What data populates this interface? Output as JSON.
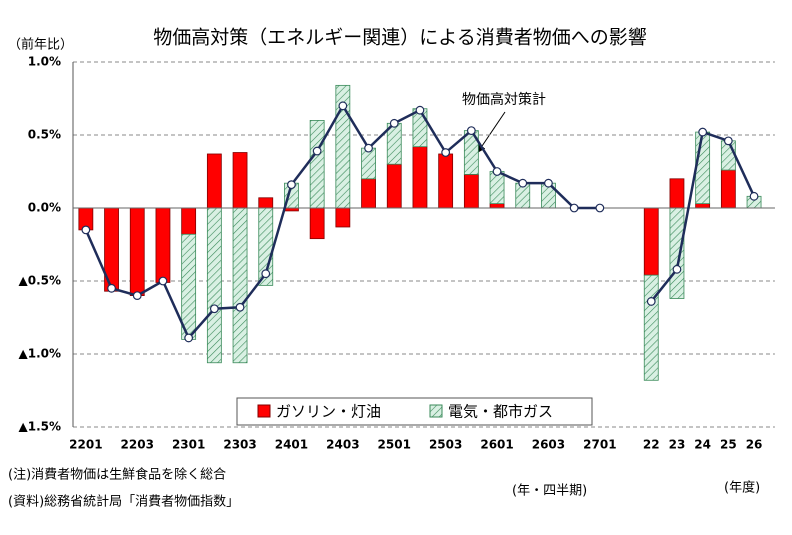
{
  "chart_data": {
    "type": "bar",
    "title": "物価高対策（エネルギー関連）による消費者物価への影響",
    "y_label": "（前年比）",
    "x_label": "(年・四半期)",
    "x_label_2": "(年度)",
    "notes": [
      "(注)消費者物価は生鮮食品を除く総合",
      "(資料)総務省統計局「消費者物価指数」"
    ],
    "categories": [
      "2201",
      null,
      "2203",
      null,
      "2301",
      null,
      "2303",
      null,
      "2401",
      null,
      "2403",
      null,
      "2501",
      null,
      "2503",
      null,
      "2601",
      null,
      "2603",
      null,
      "2701",
      null,
      "22",
      "23",
      "24",
      "25",
      "26"
    ],
    "series": [
      {
        "name": "ガソリン・灯油",
        "type": "bar",
        "color": "#ff0000",
        "values": [
          -0.15,
          -0.57,
          -0.6,
          -0.51,
          -0.18,
          0.37,
          0.38,
          0.07,
          -0.02,
          -0.21,
          -0.13,
          0.2,
          0.3,
          0.42,
          0.37,
          0.23,
          0.03,
          0,
          0,
          0,
          0,
          null,
          -0.46,
          0.2,
          0.03,
          0.26,
          0
        ]
      },
      {
        "name": "電気・都市ガス",
        "type": "bar",
        "color": "#d9f0e3",
        "hatch_color": "#3a8a5a",
        "values": [
          0,
          0,
          0,
          0,
          -0.72,
          -1.06,
          -1.06,
          -0.53,
          0.17,
          0.6,
          0.84,
          0.21,
          0.28,
          0.26,
          0,
          0.3,
          0.22,
          0.17,
          0.17,
          0,
          0,
          null,
          -0.72,
          -0.62,
          0.49,
          0.2,
          0.08
        ]
      },
      {
        "name": "物価高対策計",
        "type": "line",
        "color": "#1f2d5a",
        "values": [
          -0.15,
          -0.55,
          -0.6,
          -0.5,
          -0.89,
          -0.69,
          -0.68,
          -0.45,
          0.16,
          0.39,
          0.7,
          0.41,
          0.58,
          0.67,
          0.38,
          0.53,
          0.25,
          0.17,
          0.17,
          0,
          0,
          null,
          -0.64,
          -0.42,
          0.52,
          0.46,
          0.08
        ]
      }
    ],
    "ylim": [
      -1.5,
      1.0
    ],
    "yticks": [
      {
        "value": 1.0,
        "label": "1.0%"
      },
      {
        "value": 0.5,
        "label": "0.5%"
      },
      {
        "value": 0,
        "label": "0.0%"
      },
      {
        "value": -0.5,
        "label": "▲0.5%"
      },
      {
        "value": -1.0,
        "label": "▲1.0%"
      },
      {
        "value": -1.5,
        "label": "▲1.5%"
      }
    ],
    "grid": true
  }
}
